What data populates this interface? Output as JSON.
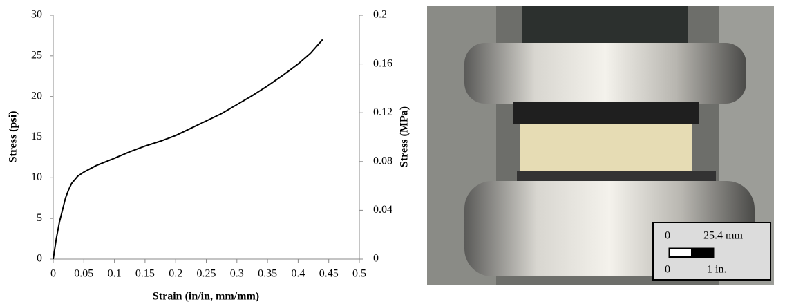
{
  "chart_data": {
    "type": "line",
    "xlabel": "Strain (in/in, mm/mm)",
    "ylabel": "Stress (psi)",
    "y2label": "Stress (MPa)",
    "x": [
      0,
      0.005,
      0.01,
      0.015,
      0.02,
      0.025,
      0.03,
      0.04,
      0.05,
      0.07,
      0.1,
      0.125,
      0.15,
      0.175,
      0.2,
      0.225,
      0.25,
      0.275,
      0.3,
      0.325,
      0.35,
      0.375,
      0.4,
      0.42,
      0.44
    ],
    "values": [
      0,
      2.5,
      4.5,
      6,
      7.5,
      8.5,
      9.3,
      10.2,
      10.7,
      11.5,
      12.4,
      13.2,
      13.9,
      14.5,
      15.2,
      16.1,
      17,
      17.9,
      19,
      20.1,
      21.3,
      22.6,
      24,
      25.3,
      27
    ],
    "color": "#000000",
    "xlim": [
      0,
      0.5
    ],
    "xticks": [
      0,
      0.05,
      0.1,
      0.15,
      0.2,
      0.25,
      0.3,
      0.35,
      0.4,
      0.45,
      0.5
    ],
    "ylim": [
      0,
      30
    ],
    "yticks": [
      0,
      5,
      10,
      15,
      20,
      25,
      30
    ],
    "y2lim": [
      0,
      0.2
    ],
    "y2ticks": [
      0,
      0.04,
      0.08,
      0.12,
      0.16,
      0.2
    ],
    "grid": false
  },
  "photo": {
    "scale_labels": [
      "0",
      "25.4 mm",
      "0",
      "1 in."
    ]
  }
}
